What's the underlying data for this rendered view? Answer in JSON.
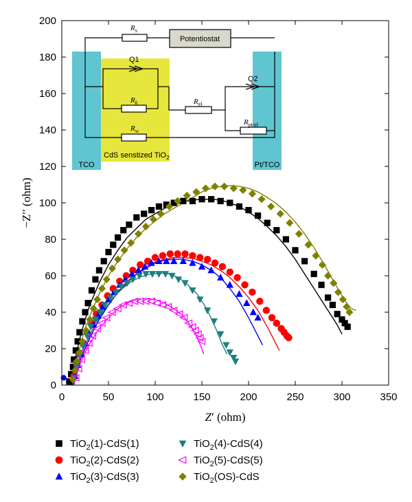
{
  "chart_data": {
    "type": "scatter",
    "xlabel_main": "Z",
    "xlabel_prime": "′",
    "xlabel_unit": " (ohm)",
    "ylabel_main": "−Z",
    "ylabel_prime": "′′",
    "ylabel_unit": " (ohm)",
    "xlim": [
      0,
      350
    ],
    "ylim": [
      0,
      200
    ],
    "x_ticks": [
      0,
      50,
      100,
      150,
      200,
      250,
      300,
      350
    ],
    "y_ticks": [
      0,
      20,
      40,
      60,
      80,
      100,
      120,
      140,
      160,
      180,
      200
    ],
    "series": [
      {
        "name": "TiO2(1)-CdS(1)",
        "label_parts": [
          "TiO",
          "2",
          "(1)-CdS(1)"
        ],
        "marker": "square",
        "color": "#000000",
        "x": [
          8,
          10,
          12,
          13,
          15,
          17,
          19,
          22,
          25,
          28,
          32,
          36,
          40,
          45,
          50,
          55,
          60,
          66,
          72,
          80,
          88,
          96,
          104,
          112,
          120,
          130,
          140,
          150,
          160,
          170,
          180,
          190,
          200,
          210,
          220,
          230,
          240,
          250,
          260,
          270,
          278,
          285,
          290,
          295,
          300,
          303,
          306
        ],
        "y": [
          2,
          6,
          10,
          14,
          19,
          24,
          29,
          35,
          40,
          45,
          52,
          58,
          63,
          68,
          73,
          77,
          81,
          85,
          88,
          92,
          94,
          96,
          98,
          99,
          100,
          101,
          101,
          102,
          102,
          101,
          100,
          98,
          96,
          93,
          89,
          85,
          80,
          74,
          68,
          61,
          55,
          48,
          44,
          39,
          36,
          34,
          32
        ],
        "fit_x": [
          9,
          12,
          15,
          20,
          25,
          30,
          40,
          50,
          60,
          70,
          80,
          90,
          100,
          110,
          120,
          130,
          140,
          150,
          160,
          170,
          180,
          190,
          200,
          210,
          220,
          230,
          240,
          250,
          260,
          270,
          280,
          290,
          295,
          300
        ],
        "fit_y": [
          0,
          8,
          16,
          27,
          36,
          44,
          56,
          66,
          74,
          81,
          86,
          91,
          94,
          97,
          99,
          100.5,
          101.5,
          102,
          102,
          101.5,
          100,
          98,
          95,
          91.5,
          87,
          82,
          76,
          69,
          61,
          53,
          45,
          37,
          33,
          28
        ]
      },
      {
        "name": "TiO2(2)-CdS(2)",
        "label_parts": [
          "TiO",
          "2",
          "(2)-CdS(2)"
        ],
        "marker": "circle",
        "color": "#ff0000",
        "x": [
          13,
          16,
          19,
          23,
          27,
          32,
          37,
          43,
          49,
          55,
          62,
          69,
          76,
          84,
          92,
          100,
          108,
          116,
          124,
          132,
          140,
          148,
          156,
          164,
          172,
          180,
          188,
          196,
          204,
          212,
          219,
          225,
          230,
          235,
          238,
          241,
          243
        ],
        "y": [
          5,
          11,
          17,
          23,
          29,
          34,
          39,
          44,
          49,
          53,
          57,
          60,
          63,
          66,
          68,
          70,
          71,
          72,
          72,
          72,
          71,
          70,
          69,
          67,
          65,
          62,
          59,
          55,
          51,
          46,
          41,
          37,
          34,
          31,
          29,
          27,
          26
        ],
        "fit_x": [
          12,
          15,
          20,
          30,
          40,
          50,
          60,
          70,
          80,
          90,
          100,
          110,
          120,
          130,
          140,
          150,
          160,
          170,
          180,
          190,
          200,
          210,
          220,
          230,
          233
        ],
        "fit_y": [
          0,
          6,
          14,
          26,
          36,
          44,
          51,
          57,
          61,
          65,
          67.5,
          69,
          70,
          70,
          69.5,
          68,
          66,
          63,
          59,
          54,
          48,
          41,
          32,
          22,
          19
        ]
      },
      {
        "name": "TiO2(3)-CdS(3)",
        "label_parts": [
          "TiO",
          "2",
          "(3)-CdS(3)"
        ],
        "marker": "triangle-up",
        "color": "#0000ff",
        "x": [
          14,
          17,
          21,
          25,
          29,
          34,
          39,
          44,
          50,
          56,
          62,
          68,
          75,
          82,
          89,
          96,
          104,
          112,
          120,
          130,
          140,
          150,
          160,
          170,
          180,
          190,
          198,
          205,
          210
        ],
        "y": [
          5,
          11,
          17,
          23,
          28,
          33,
          38,
          43,
          47,
          51,
          55,
          58,
          61,
          63,
          65,
          67,
          68,
          68,
          68,
          68,
          67,
          65,
          63,
          59,
          55,
          50,
          45,
          40,
          37
        ],
        "fit_x": [
          12,
          15,
          20,
          30,
          40,
          50,
          60,
          70,
          80,
          90,
          100,
          110,
          120,
          130,
          140,
          150,
          160,
          170,
          180,
          190,
          200,
          210,
          215
        ],
        "fit_y": [
          0,
          6,
          14,
          26,
          36,
          44,
          51,
          56,
          61,
          64,
          67,
          68.5,
          69,
          69,
          68,
          66,
          63,
          59,
          53,
          46,
          37,
          27,
          22
        ]
      },
      {
        "name": "TiO2(4)-CdS(4)",
        "label_parts": [
          "TiO",
          "2",
          "(4)-CdS(4)"
        ],
        "marker": "triangle-down",
        "color": "#1f7f7f",
        "x": [
          13,
          16,
          19,
          23,
          27,
          31,
          36,
          41,
          46,
          52,
          58,
          64,
          70,
          76,
          83,
          90,
          97,
          104,
          111,
          118,
          125,
          132,
          140,
          148,
          156,
          163,
          170,
          176,
          180,
          184,
          186
        ],
        "y": [
          4,
          10,
          16,
          21,
          27,
          32,
          36,
          40,
          44,
          48,
          51,
          54,
          56,
          58,
          60,
          61,
          61,
          61,
          61,
          60,
          58,
          56,
          52,
          47,
          41,
          35,
          28,
          22,
          18,
          15,
          13
        ],
        "fit_x": [
          11,
          14,
          18,
          25,
          35,
          45,
          55,
          65,
          75,
          85,
          95,
          105,
          115,
          125,
          135,
          145,
          155,
          165,
          172,
          177
        ],
        "fit_y": [
          0,
          6,
          13,
          22,
          33,
          41,
          48,
          53,
          57,
          59.5,
          61,
          61.5,
          61,
          59,
          55,
          50,
          42,
          31,
          22,
          17
        ]
      },
      {
        "name": "TiO2(5)-CdS(5)",
        "label_parts": [
          "TiO",
          "2",
          "(5)-CdS(5)"
        ],
        "marker": "triangle-left-open",
        "color": "#ff00ff",
        "x": [
          15,
          18,
          21,
          25,
          29,
          33,
          38,
          43,
          48,
          54,
          60,
          66,
          72,
          78,
          84,
          90,
          96,
          102,
          108,
          114,
          120,
          126,
          131,
          136,
          140,
          143,
          146,
          148,
          150
        ],
        "y": [
          4,
          9,
          14,
          19,
          23,
          27,
          31,
          34,
          37,
          40,
          42,
          44,
          45,
          46,
          46,
          46,
          46,
          45,
          44,
          43,
          41,
          39,
          37,
          34,
          32,
          30,
          28,
          26,
          24
        ],
        "fit_x": [
          13,
          16,
          20,
          25,
          30,
          40,
          50,
          60,
          70,
          80,
          90,
          100,
          110,
          120,
          130,
          140,
          145,
          150,
          152
        ],
        "fit_y": [
          0,
          6,
          12,
          18,
          23,
          31,
          37,
          42,
          45,
          47,
          47.5,
          47,
          45,
          42,
          38,
          31,
          26,
          20,
          17
        ]
      },
      {
        "name": "TiO2(OS)-CdS",
        "label_parts": [
          "TiO",
          "2",
          "(OS)-CdS"
        ],
        "marker": "diamond",
        "color": "#808000",
        "x": [
          12,
          14,
          16,
          19,
          22,
          26,
          30,
          34,
          38,
          43,
          48,
          54,
          60,
          67,
          74,
          82,
          90,
          98,
          106,
          115,
          124,
          134,
          144,
          154,
          164,
          174,
          184,
          194,
          204,
          214,
          224,
          234,
          244,
          254,
          264,
          272,
          279,
          285,
          291,
          296,
          301,
          305,
          308
        ],
        "y": [
          3,
          8,
          13,
          18,
          24,
          30,
          36,
          42,
          47,
          53,
          58,
          64,
          69,
          74,
          78,
          83,
          87,
          91,
          94,
          98,
          101,
          104,
          106,
          108,
          109,
          109,
          108,
          107,
          105,
          102,
          98,
          94,
          89,
          83,
          77,
          71,
          66,
          60,
          56,
          51,
          47,
          43,
          40
        ],
        "fit_x": [
          10,
          13,
          16,
          20,
          25,
          30,
          40,
          50,
          60,
          70,
          80,
          90,
          100,
          110,
          120,
          130,
          140,
          150,
          160,
          170,
          180,
          190,
          200,
          210,
          220,
          230,
          240,
          250,
          260,
          270,
          280,
          290,
          300,
          305,
          310,
          315
        ],
        "fit_y": [
          0,
          7,
          14,
          22,
          31,
          38,
          50,
          60,
          68,
          75,
          81,
          86,
          90,
          94,
          97,
          100,
          103,
          106,
          108,
          109,
          109.5,
          109,
          108,
          106,
          103,
          99.5,
          95,
          89.5,
          83,
          75.5,
          67,
          58,
          49,
          45,
          42,
          41
        ]
      }
    ]
  },
  "inset": {
    "potentiostat": "Potentiostat",
    "tco": "TCO",
    "cds_main": "CdS senstized TiO",
    "cds_sub": "2",
    "pt_tco": "Pt/TCO",
    "rs_main": "R",
    "rs_sub": "s",
    "q1": "Q1",
    "q2": "Q2",
    "rk_main": "R",
    "rk_sub": "k",
    "rw_main": "R",
    "rw_sub": "w",
    "rel_main": "R",
    "rel_sub": "el",
    "rpt_main": "R",
    "rpt_sub": "pt/el"
  },
  "colors": {
    "tco_fill": "#5fc5d0",
    "cds_fill": "#e6e63c",
    "potentiostat_fill": "#d8d8cc"
  }
}
